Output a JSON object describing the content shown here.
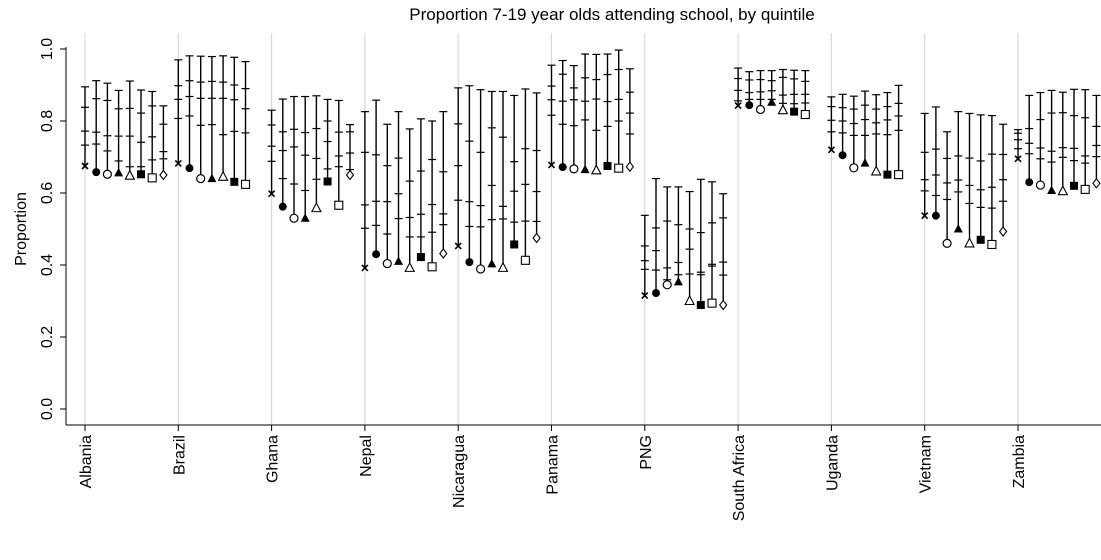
{
  "chart_data": {
    "type": "scatter",
    "title": "Proportion 7-19 year olds attending school, by quintile",
    "ylabel": "Proportion",
    "xlabel": "",
    "ylim": [
      0,
      1.0
    ],
    "yticks": [
      "0.0",
      "0.2",
      "0.4",
      "0.6",
      "0.8",
      "1.0"
    ],
    "grid": "vertical lines at country groups",
    "marker_sequence": [
      "x",
      "filled-circle",
      "hollow-circle",
      "filled-triangle",
      "hollow-triangle",
      "filled-square",
      "hollow-square",
      "hollow-diamond"
    ],
    "countries": [
      {
        "name": "Albania",
        "points": [
          {
            "y": 0.675,
            "ticks": [
              0.733,
              0.772,
              0.838,
              0.895
            ]
          },
          {
            "y": 0.658,
            "ticks": [
              0.736,
              0.769,
              0.862,
              0.912
            ]
          },
          {
            "y": 0.652,
            "ticks": [
              0.717,
              0.759,
              0.857,
              0.905
            ]
          },
          {
            "y": 0.656,
            "ticks": [
              0.689,
              0.758,
              0.834,
              0.885
            ]
          },
          {
            "y": 0.648,
            "ticks": [
              0.673,
              0.758,
              0.835,
              0.911
            ]
          },
          {
            "y": 0.652,
            "ticks": [
              0.673,
              0.741,
              0.822,
              0.886
            ]
          },
          {
            "y": 0.642,
            "ticks": [
              0.692,
              0.756,
              0.842,
              0.882
            ]
          },
          {
            "y": 0.65,
            "ticks": [
              0.695,
              0.715,
              0.791,
              0.842
            ]
          }
        ]
      },
      {
        "name": "Brazil",
        "points": [
          {
            "y": 0.682,
            "ticks": [
              0.807,
              0.86,
              0.898,
              0.97
            ]
          },
          {
            "y": 0.669,
            "ticks": [
              0.814,
              0.868,
              0.912,
              0.981
            ]
          },
          {
            "y": 0.64,
            "ticks": [
              0.788,
              0.863,
              0.908,
              0.98
            ]
          },
          {
            "y": 0.64,
            "ticks": [
              0.79,
              0.863,
              0.91,
              0.979
            ]
          },
          {
            "y": 0.645,
            "ticks": [
              0.762,
              0.863,
              0.908,
              0.981
            ]
          },
          {
            "y": 0.631,
            "ticks": [
              0.771,
              0.859,
              0.9,
              0.977
            ]
          },
          {
            "y": 0.624,
            "ticks": [
              0.767,
              0.834,
              0.89,
              0.965
            ]
          }
        ]
      },
      {
        "name": "Ghana",
        "points": [
          {
            "y": 0.598,
            "ticks": [
              0.688,
              0.73,
              0.789,
              0.83
            ]
          },
          {
            "y": 0.562,
            "ticks": [
              0.64,
              0.718,
              0.77,
              0.861
            ]
          },
          {
            "y": 0.53,
            "ticks": [
              0.625,
              0.728,
              0.777,
              0.868
            ]
          },
          {
            "y": 0.53,
            "ticks": [
              0.607,
              0.705,
              0.768,
              0.868
            ]
          },
          {
            "y": 0.558,
            "ticks": [
              0.638,
              0.696,
              0.779,
              0.87
            ]
          },
          {
            "y": 0.632,
            "ticks": [
              0.667,
              0.743,
              0.8,
              0.86
            ]
          },
          {
            "y": 0.566,
            "ticks": [
              0.673,
              0.703,
              0.769,
              0.857
            ]
          },
          {
            "y": 0.65,
            "ticks": [
              0.665,
              0.711,
              0.77,
              0.79
            ]
          }
        ]
      },
      {
        "name": "Nepal",
        "points": [
          {
            "y": 0.392,
            "ticks": [
              0.502,
              0.567,
              0.713,
              0.826
            ]
          },
          {
            "y": 0.43,
            "ticks": [
              0.51,
              0.577,
              0.706,
              0.858
            ]
          },
          {
            "y": 0.404,
            "ticks": [
              0.486,
              0.576,
              0.676,
              0.791
            ]
          },
          {
            "y": 0.41,
            "ticks": [
              0.529,
              0.598,
              0.697,
              0.826
            ]
          },
          {
            "y": 0.392,
            "ticks": [
              0.478,
              0.532,
              0.633,
              0.778
            ]
          },
          {
            "y": 0.422,
            "ticks": [
              0.478,
              0.541,
              0.661,
              0.806
            ]
          },
          {
            "y": 0.395,
            "ticks": [
              0.491,
              0.568,
              0.693,
              0.8
            ]
          },
          {
            "y": 0.432,
            "ticks": [
              0.512,
              0.542,
              0.659,
              0.826
            ]
          }
        ]
      },
      {
        "name": "Nicaragua",
        "points": [
          {
            "y": 0.453,
            "ticks": [
              0.58,
              0.676,
              0.792,
              0.892
            ]
          },
          {
            "y": 0.408,
            "ticks": [
              0.507,
              0.576,
              0.744,
              0.898
            ]
          },
          {
            "y": 0.389,
            "ticks": [
              0.506,
              0.565,
              0.713,
              0.887
            ]
          },
          {
            "y": 0.403,
            "ticks": [
              0.526,
              0.621,
              0.781,
              0.882
            ]
          },
          {
            "y": 0.392,
            "ticks": [
              0.528,
              0.563,
              0.755,
              0.882
            ]
          },
          {
            "y": 0.457,
            "ticks": [
              0.519,
              0.605,
              0.687,
              0.871
            ]
          },
          {
            "y": 0.413,
            "ticks": [
              0.522,
              0.624,
              0.723,
              0.889
            ]
          },
          {
            "y": 0.475,
            "ticks": [
              0.521,
              0.604,
              0.718,
              0.878
            ]
          }
        ]
      },
      {
        "name": "Panama",
        "points": [
          {
            "y": 0.678,
            "ticks": [
              0.816,
              0.859,
              0.897,
              0.955
            ]
          },
          {
            "y": 0.672,
            "ticks": [
              0.791,
              0.855,
              0.93,
              0.968
            ]
          },
          {
            "y": 0.667,
            "ticks": [
              0.787,
              0.859,
              0.892,
              0.954
            ]
          },
          {
            "y": 0.665,
            "ticks": [
              0.803,
              0.855,
              0.92,
              0.986
            ]
          },
          {
            "y": 0.663,
            "ticks": [
              0.774,
              0.861,
              0.915,
              0.985
            ]
          },
          {
            "y": 0.675,
            "ticks": [
              0.785,
              0.854,
              0.929,
              0.986
            ]
          },
          {
            "y": 0.669,
            "ticks": [
              0.8,
              0.86,
              0.943,
              0.997
            ]
          },
          {
            "y": 0.673,
            "ticks": [
              0.764,
              0.822,
              0.88,
              0.945
            ]
          }
        ]
      },
      {
        "name": "PNG",
        "points": [
          {
            "y": 0.315,
            "ticks": [
              0.388,
              0.412,
              0.453,
              0.538
            ]
          },
          {
            "y": 0.322,
            "ticks": [
              0.386,
              0.44,
              0.503,
              0.64
            ]
          },
          {
            "y": 0.345,
            "ticks": [
              0.359,
              0.392,
              0.522,
              0.617
            ]
          },
          {
            "y": 0.353,
            "ticks": [
              0.373,
              0.407,
              0.512,
              0.617
            ]
          },
          {
            "y": 0.3,
            "ticks": [
              0.375,
              0.444,
              0.5,
              0.604
            ]
          },
          {
            "y": 0.289,
            "ticks": [
              0.373,
              0.38,
              0.49,
              0.638
            ]
          },
          {
            "y": 0.294,
            "ticks": [
              0.397,
              0.402,
              0.517,
              0.631
            ]
          },
          {
            "y": 0.289,
            "ticks": [
              0.372,
              0.408,
              0.531,
              0.598
            ]
          }
        ]
      },
      {
        "name": "South Africa",
        "points": [
          {
            "y": 0.843,
            "ticks": [
              0.856,
              0.885,
              0.918,
              0.947
            ]
          },
          {
            "y": 0.844,
            "ticks": [
              0.86,
              0.879,
              0.914,
              0.937
            ]
          },
          {
            "y": 0.832,
            "ticks": [
              0.86,
              0.881,
              0.915,
              0.94
            ]
          },
          {
            "y": 0.852,
            "ticks": [
              0.86,
              0.884,
              0.912,
              0.94
            ]
          },
          {
            "y": 0.83,
            "ticks": [
              0.849,
              0.872,
              0.921,
              0.943
            ]
          },
          {
            "y": 0.826,
            "ticks": [
              0.848,
              0.874,
              0.917,
              0.941
            ]
          },
          {
            "y": 0.818,
            "ticks": [
              0.85,
              0.874,
              0.91,
              0.94
            ]
          }
        ]
      },
      {
        "name": "Uganda",
        "points": [
          {
            "y": 0.72,
            "ticks": [
              0.77,
              0.802,
              0.84,
              0.867
            ]
          },
          {
            "y": 0.705,
            "ticks": [
              0.767,
              0.8,
              0.837,
              0.874
            ]
          },
          {
            "y": 0.67,
            "ticks": [
              0.76,
              0.793,
              0.833,
              0.869
            ]
          },
          {
            "y": 0.683,
            "ticks": [
              0.76,
              0.804,
              0.844,
              0.883
            ]
          },
          {
            "y": 0.66,
            "ticks": [
              0.764,
              0.795,
              0.833,
              0.873
            ]
          },
          {
            "y": 0.651,
            "ticks": [
              0.762,
              0.803,
              0.84,
              0.879
            ]
          },
          {
            "y": 0.651,
            "ticks": [
              0.774,
              0.814,
              0.849,
              0.899
            ]
          }
        ]
      },
      {
        "name": "Vietnam",
        "points": [
          {
            "y": 0.537,
            "ticks": [
              0.606,
              0.637,
              0.713,
              0.821
            ]
          },
          {
            "y": 0.537,
            "ticks": [
              0.593,
              0.65,
              0.722,
              0.839
            ]
          },
          {
            "y": 0.46,
            "ticks": [
              0.582,
              0.628,
              0.696,
              0.77
            ]
          },
          {
            "y": 0.5,
            "ticks": [
              0.603,
              0.636,
              0.703,
              0.826
            ]
          },
          {
            "y": 0.46,
            "ticks": [
              0.571,
              0.621,
              0.697,
              0.821
            ]
          },
          {
            "y": 0.47,
            "ticks": [
              0.56,
              0.609,
              0.689,
              0.817
            ]
          },
          {
            "y": 0.457,
            "ticks": [
              0.558,
              0.616,
              0.708,
              0.815
            ]
          },
          {
            "y": 0.493,
            "ticks": [
              0.577,
              0.637,
              0.707,
              0.791
            ]
          }
        ]
      },
      {
        "name": "Zambia",
        "points": [
          {
            "y": 0.695,
            "ticks": [
              0.723,
              0.748,
              0.766,
              0.776
            ]
          },
          {
            "y": 0.63,
            "ticks": [
              0.709,
              0.738,
              0.779,
              0.871
            ]
          },
          {
            "y": 0.622,
            "ticks": [
              0.695,
              0.725,
              0.804,
              0.879
            ]
          },
          {
            "y": 0.607,
            "ticks": [
              0.686,
              0.716,
              0.822,
              0.885
            ]
          },
          {
            "y": 0.605,
            "ticks": [
              0.699,
              0.726,
              0.823,
              0.88
            ]
          },
          {
            "y": 0.62,
            "ticks": [
              0.69,
              0.724,
              0.815,
              0.888
            ]
          },
          {
            "y": 0.61,
            "ticks": [
              0.683,
              0.703,
              0.809,
              0.887
            ]
          },
          {
            "y": 0.627,
            "ticks": [
              0.701,
              0.732,
              0.785,
              0.871
            ]
          }
        ]
      }
    ]
  }
}
